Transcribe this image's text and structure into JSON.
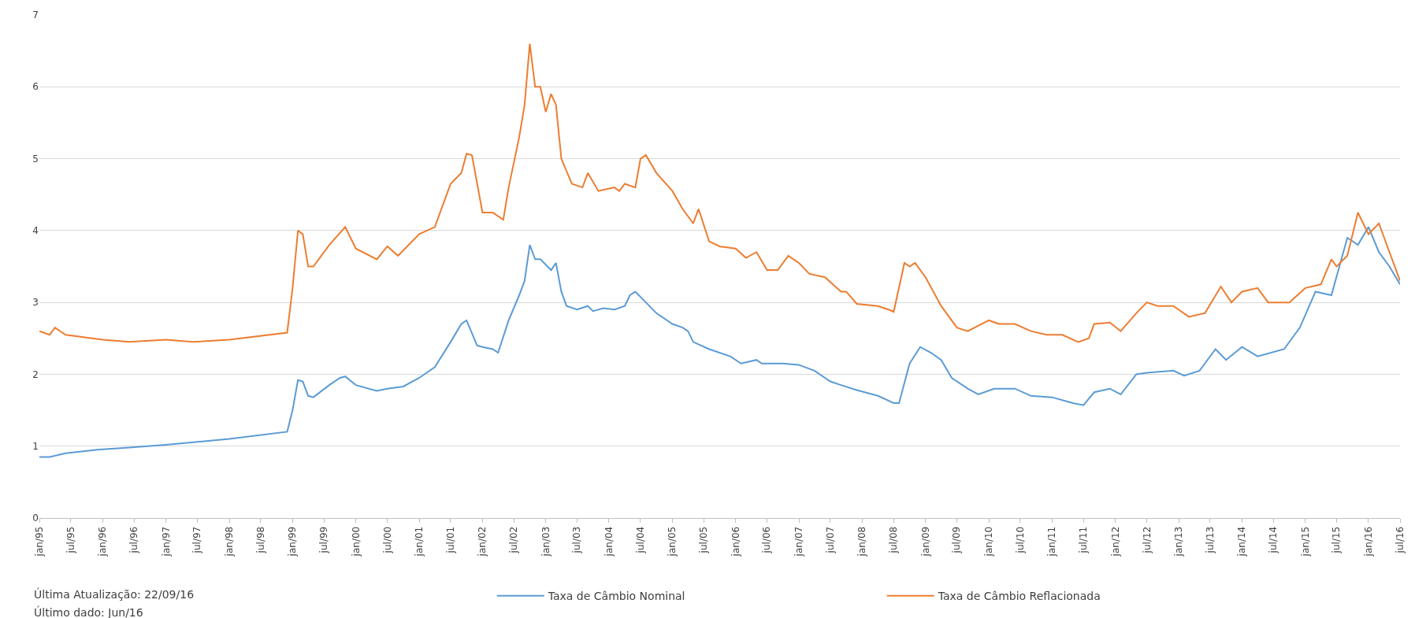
{
  "chart_data": {
    "type": "line",
    "xlim": [
      "1995-01",
      "2016-07"
    ],
    "xticks": [
      {
        "value": "1995-01",
        "label": "jan/95"
      },
      {
        "value": "1995-07",
        "label": "jul/95"
      },
      {
        "value": "1996-01",
        "label": "jan/96"
      },
      {
        "value": "1996-07",
        "label": "jul/96"
      },
      {
        "value": "1997-01",
        "label": "jan/97"
      },
      {
        "value": "1997-07",
        "label": "jul/97"
      },
      {
        "value": "1998-01",
        "label": "jan/98"
      },
      {
        "value": "1998-07",
        "label": "jul/98"
      },
      {
        "value": "1999-01",
        "label": "jan/99"
      },
      {
        "value": "1999-07",
        "label": "jul/99"
      },
      {
        "value": "2000-01",
        "label": "jan/00"
      },
      {
        "value": "2000-07",
        "label": "jul/00"
      },
      {
        "value": "2001-01",
        "label": "jan/01"
      },
      {
        "value": "2001-07",
        "label": "jul/01"
      },
      {
        "value": "2002-01",
        "label": "jan/02"
      },
      {
        "value": "2002-07",
        "label": "jul/02"
      },
      {
        "value": "2003-01",
        "label": "jan/03"
      },
      {
        "value": "2003-07",
        "label": "jul/03"
      },
      {
        "value": "2004-01",
        "label": "jan/04"
      },
      {
        "value": "2004-07",
        "label": "jul/04"
      },
      {
        "value": "2005-01",
        "label": "jan/05"
      },
      {
        "value": "2005-07",
        "label": "jul/05"
      },
      {
        "value": "2006-01",
        "label": "jan/06"
      },
      {
        "value": "2006-07",
        "label": "jul/06"
      },
      {
        "value": "2007-01",
        "label": "jan/07"
      },
      {
        "value": "2007-07",
        "label": "jul/07"
      },
      {
        "value": "2008-01",
        "label": "jan/08"
      },
      {
        "value": "2008-07",
        "label": "jul/08"
      },
      {
        "value": "2009-01",
        "label": "jan/09"
      },
      {
        "value": "2009-07",
        "label": "jul/09"
      },
      {
        "value": "2010-01",
        "label": "jan/10"
      },
      {
        "value": "2010-07",
        "label": "jul/10"
      },
      {
        "value": "2011-01",
        "label": "jan/11"
      },
      {
        "value": "2011-07",
        "label": "jul/11"
      },
      {
        "value": "2012-01",
        "label": "jan/12"
      },
      {
        "value": "2012-07",
        "label": "jul/12"
      },
      {
        "value": "2013-01",
        "label": "jan/13"
      },
      {
        "value": "2013-07",
        "label": "jul/13"
      },
      {
        "value": "2014-01",
        "label": "jan/14"
      },
      {
        "value": "2014-07",
        "label": "jul/14"
      },
      {
        "value": "2015-01",
        "label": "jan/15"
      },
      {
        "value": "2015-07",
        "label": "jul/15"
      },
      {
        "value": "2016-01",
        "label": "jan/16"
      },
      {
        "value": "2016-07",
        "label": "jul/16"
      }
    ],
    "ylim": [
      0,
      7
    ],
    "yticks": [
      0,
      1,
      2,
      3,
      4,
      5,
      6,
      7
    ],
    "grid": "y",
    "legend": "bottom",
    "marker": "none",
    "line_style": "solid",
    "annotations": [
      "Última Atualização: 22/09/16",
      "Último dado: Jun/16"
    ],
    "series": [
      {
        "name": "Taxa de Câmbio Nominal",
        "color": "#5b9bd5",
        "x": [
          "1995-01",
          "1995-03",
          "1995-06",
          "1995-12",
          "1996-06",
          "1997-01",
          "1998-01",
          "1998-12",
          "1999-01",
          "1999-02",
          "1999-03",
          "1999-04",
          "1999-05",
          "1999-08",
          "1999-10",
          "1999-11",
          "2000-01",
          "2000-05",
          "2000-07",
          "2000-10",
          "2001-01",
          "2001-04",
          "2001-07",
          "2001-09",
          "2001-10",
          "2001-12",
          "2002-01",
          "2002-03",
          "2002-04",
          "2002-06",
          "2002-08",
          "2002-09",
          "2002-10",
          "2002-11",
          "2002-12",
          "2003-02",
          "2003-03",
          "2003-04",
          "2003-05",
          "2003-07",
          "2003-09",
          "2003-10",
          "2003-12",
          "2004-02",
          "2004-04",
          "2004-05",
          "2004-06",
          "2004-08",
          "2004-10",
          "2005-01",
          "2005-03",
          "2005-04",
          "2005-05",
          "2005-08",
          "2005-12",
          "2006-02",
          "2006-05",
          "2006-06",
          "2006-10",
          "2007-01",
          "2007-04",
          "2007-07",
          "2007-09",
          "2007-12",
          "2008-04",
          "2008-07",
          "2008-08",
          "2008-10",
          "2008-12",
          "2009-02",
          "2009-04",
          "2009-06",
          "2009-09",
          "2009-11",
          "2010-02",
          "2010-06",
          "2010-09",
          "2011-01",
          "2011-05",
          "2011-07",
          "2011-09",
          "2011-12",
          "2012-02",
          "2012-05",
          "2012-07",
          "2012-12",
          "2013-02",
          "2013-05",
          "2013-08",
          "2013-10",
          "2014-01",
          "2014-04",
          "2014-09",
          "2014-12",
          "2015-03",
          "2015-06",
          "2015-09",
          "2015-11",
          "2016-01",
          "2016-03",
          "2016-05",
          "2016-07"
        ],
        "values": [
          0.85,
          0.85,
          0.9,
          0.95,
          0.98,
          1.02,
          1.1,
          1.2,
          1.5,
          1.92,
          1.9,
          1.7,
          1.68,
          1.85,
          1.95,
          1.97,
          1.85,
          1.77,
          1.8,
          1.83,
          1.95,
          2.1,
          2.45,
          2.7,
          2.75,
          2.4,
          2.38,
          2.35,
          2.3,
          2.75,
          3.1,
          3.3,
          3.8,
          3.6,
          3.6,
          3.45,
          3.55,
          3.15,
          2.95,
          2.9,
          2.95,
          2.88,
          2.92,
          2.9,
          2.95,
          3.1,
          3.15,
          3.0,
          2.85,
          2.7,
          2.65,
          2.6,
          2.45,
          2.35,
          2.25,
          2.15,
          2.2,
          2.15,
          2.15,
          2.13,
          2.05,
          1.9,
          1.85,
          1.78,
          1.7,
          1.6,
          1.6,
          2.15,
          2.38,
          2.3,
          2.2,
          1.95,
          1.8,
          1.72,
          1.8,
          1.8,
          1.7,
          1.68,
          1.6,
          1.57,
          1.75,
          1.8,
          1.72,
          2.0,
          2.02,
          2.05,
          1.98,
          2.05,
          2.35,
          2.2,
          2.38,
          2.25,
          2.35,
          2.65,
          3.15,
          3.1,
          3.9,
          3.8,
          4.05,
          3.7,
          3.5,
          3.25
        ]
      },
      {
        "name": "Taxa de Câmbio Reflacionada",
        "color": "#ed7d31",
        "x": [
          "1995-01",
          "1995-03",
          "1995-04",
          "1995-06",
          "1996-01",
          "1996-06",
          "1997-01",
          "1997-06",
          "1998-01",
          "1998-12",
          "1999-01",
          "1999-02",
          "1999-03",
          "1999-04",
          "1999-05",
          "1999-08",
          "1999-11",
          "2000-01",
          "2000-05",
          "2000-07",
          "2000-09",
          "2001-01",
          "2001-04",
          "2001-07",
          "2001-09",
          "2001-10",
          "2001-11",
          "2002-01",
          "2002-03",
          "2002-05",
          "2002-06",
          "2002-08",
          "2002-09",
          "2002-10",
          "2002-11",
          "2002-12",
          "2003-01",
          "2003-02",
          "2003-03",
          "2003-04",
          "2003-06",
          "2003-08",
          "2003-09",
          "2003-11",
          "2004-02",
          "2004-03",
          "2004-04",
          "2004-06",
          "2004-07",
          "2004-08",
          "2004-10",
          "2005-01",
          "2005-03",
          "2005-05",
          "2005-06",
          "2005-08",
          "2005-10",
          "2006-01",
          "2006-03",
          "2006-05",
          "2006-07",
          "2006-09",
          "2006-11",
          "2007-01",
          "2007-03",
          "2007-06",
          "2007-09",
          "2007-10",
          "2007-12",
          "2008-04",
          "2008-06",
          "2008-07",
          "2008-09",
          "2008-10",
          "2008-11",
          "2009-01",
          "2009-04",
          "2009-07",
          "2009-09",
          "2010-01",
          "2010-03",
          "2010-06",
          "2010-09",
          "2010-12",
          "2011-03",
          "2011-06",
          "2011-08",
          "2011-09",
          "2011-12",
          "2012-02",
          "2012-05",
          "2012-07",
          "2012-09",
          "2012-12",
          "2013-03",
          "2013-06",
          "2013-09",
          "2013-11",
          "2014-01",
          "2014-04",
          "2014-06",
          "2014-10",
          "2015-01",
          "2015-04",
          "2015-06",
          "2015-07",
          "2015-09",
          "2015-11",
          "2016-01",
          "2016-03",
          "2016-05",
          "2016-07"
        ],
        "values": [
          2.6,
          2.55,
          2.65,
          2.55,
          2.48,
          2.45,
          2.48,
          2.45,
          2.48,
          2.58,
          3.2,
          4.0,
          3.95,
          3.5,
          3.5,
          3.8,
          4.05,
          3.75,
          3.6,
          3.78,
          3.65,
          3.95,
          4.05,
          4.65,
          4.8,
          5.07,
          5.05,
          4.25,
          4.25,
          4.15,
          4.6,
          5.3,
          5.75,
          6.6,
          6.0,
          6.0,
          5.65,
          5.9,
          5.75,
          5.0,
          4.65,
          4.6,
          4.8,
          4.55,
          4.6,
          4.55,
          4.65,
          4.6,
          5.0,
          5.05,
          4.8,
          4.55,
          4.3,
          4.1,
          4.3,
          3.85,
          3.78,
          3.75,
          3.62,
          3.7,
          3.45,
          3.45,
          3.65,
          3.55,
          3.4,
          3.35,
          3.15,
          3.15,
          2.98,
          2.95,
          2.9,
          2.87,
          3.55,
          3.5,
          3.55,
          3.35,
          2.95,
          2.65,
          2.6,
          2.75,
          2.7,
          2.7,
          2.6,
          2.55,
          2.55,
          2.45,
          2.5,
          2.7,
          2.72,
          2.6,
          2.85,
          3.0,
          2.95,
          2.95,
          2.8,
          2.85,
          3.22,
          3.0,
          3.15,
          3.2,
          3.0,
          3.0,
          3.2,
          3.25,
          3.6,
          3.5,
          3.65,
          4.25,
          3.95,
          4.1,
          3.7,
          3.3
        ]
      }
    ]
  }
}
